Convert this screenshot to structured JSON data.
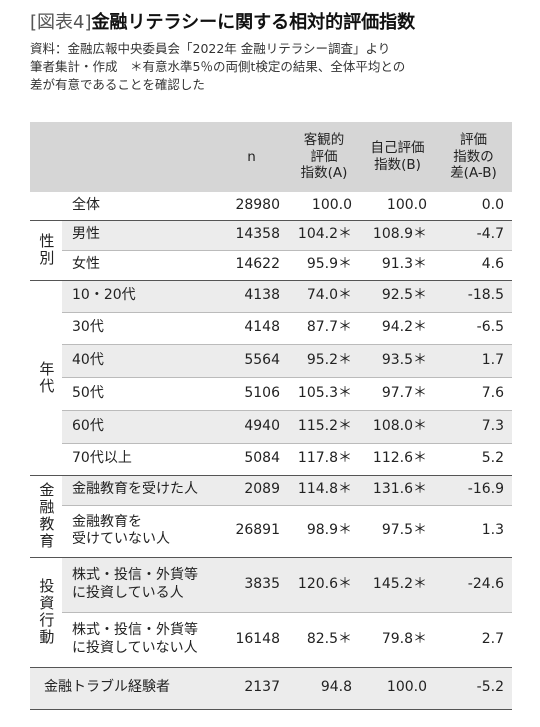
{
  "figure_label": "[図表4]",
  "title": "金融リテラシーに関する相対的評価指数",
  "notes": [
    "資料：金融広報中央委員会「2022年 金融リテラシー調査」より",
    "筆者集計・作成　＊有意水準5％の両側t検定の結果、全体平均との",
    "差が有意であることを確認した"
  ],
  "table": {
    "columns": [
      [
        "n"
      ],
      [
        "客観的",
        "評価",
        "指数(A)"
      ],
      [
        "自己評価",
        "指数(B)"
      ],
      [
        "評価",
        "指数の",
        "差(A-B)"
      ]
    ],
    "sections": [
      {
        "rows": [
          {
            "label": [
              "全体"
            ],
            "cells": [
              "28980",
              "100.0",
              "100.0",
              "0.0"
            ]
          }
        ]
      },
      {
        "group": "性別",
        "rows": [
          {
            "label": [
              "男性"
            ],
            "cells": [
              "14358",
              "104.2＊",
              "108.9＊",
              "-4.7"
            ]
          },
          {
            "label": [
              "女性"
            ],
            "cells": [
              "14622",
              "95.9＊",
              "91.3＊",
              "4.6"
            ]
          }
        ]
      },
      {
        "group": "年代",
        "rows": [
          {
            "label": [
              "10・20代"
            ],
            "cells": [
              "4138",
              "74.0＊",
              "92.5＊",
              "-18.5"
            ]
          },
          {
            "label": [
              "30代"
            ],
            "cells": [
              "4148",
              "87.7＊",
              "94.2＊",
              "-6.5"
            ]
          },
          {
            "label": [
              "40代"
            ],
            "cells": [
              "5564",
              "95.2＊",
              "93.5＊",
              "1.7"
            ]
          },
          {
            "label": [
              "50代"
            ],
            "cells": [
              "5106",
              "105.3＊",
              "97.7＊",
              "7.6"
            ]
          },
          {
            "label": [
              "60代"
            ],
            "cells": [
              "4940",
              "115.2＊",
              "108.0＊",
              "7.3"
            ]
          },
          {
            "label": [
              "70代以上"
            ],
            "cells": [
              "5084",
              "117.8＊",
              "112.6＊",
              "5.2"
            ]
          }
        ]
      },
      {
        "group": "金融教育",
        "rows": [
          {
            "label": [
              "金融教育を受けた人"
            ],
            "cells": [
              "2089",
              "114.8＊",
              "131.6＊",
              "-16.9"
            ]
          },
          {
            "label": [
              "金融教育を",
              "受けていない人"
            ],
            "cells": [
              "26891",
              "98.9＊",
              "97.5＊",
              "1.3"
            ]
          }
        ]
      },
      {
        "group": "投資行動",
        "rows": [
          {
            "label": [
              "株式・投信・外貨等",
              "に投資している人"
            ],
            "cells": [
              "3835",
              "120.6＊",
              "145.2＊",
              "-24.6"
            ]
          },
          {
            "label": [
              "株式・投信・外貨等",
              "に投資していない人"
            ],
            "cells": [
              "16148",
              "82.5＊",
              "79.8＊",
              "2.7"
            ]
          }
        ]
      },
      {
        "rows": [
          {
            "label": [
              "金融トラブル経験者"
            ],
            "cells": [
              "2137",
              "94.8",
              "100.0",
              "-5.2"
            ]
          }
        ]
      }
    ]
  }
}
